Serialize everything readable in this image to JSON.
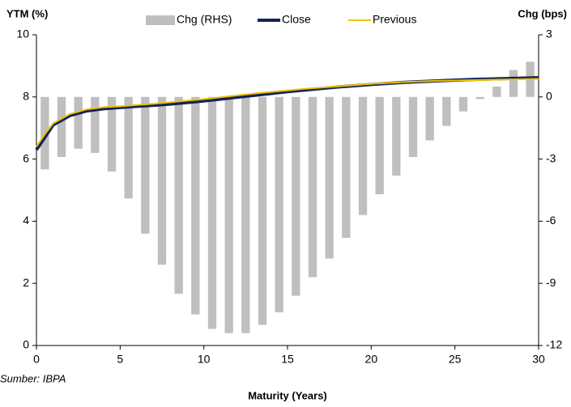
{
  "chart_data": {
    "type": "combo",
    "y_title": "YTM (%)",
    "y2_title": "Chg (bps)",
    "x_title": "Maturity (Years)",
    "source": "Sumber: IBPA",
    "xlim": [
      0,
      30
    ],
    "xticks": [
      0,
      5,
      10,
      15,
      20,
      25,
      30
    ],
    "ylim": [
      0,
      10
    ],
    "yticks": [
      0,
      2,
      4,
      6,
      8,
      10
    ],
    "y2lim": [
      -12,
      3
    ],
    "y2ticks": [
      -12,
      -9,
      -6,
      -3,
      0,
      3
    ],
    "series": [
      {
        "name": "Chg (RHS)",
        "kind": "bar",
        "axis": "y2",
        "color": "#bfbfbf",
        "x": [
          0.5,
          1.5,
          2.5,
          3.5,
          4.5,
          5.5,
          6.5,
          7.5,
          8.5,
          9.5,
          10.5,
          11.5,
          12.5,
          13.5,
          14.5,
          15.5,
          16.5,
          17.5,
          18.5,
          19.5,
          20.5,
          21.5,
          22.5,
          23.5,
          24.5,
          25.5,
          26.5,
          27.5,
          28.5,
          29.5
        ],
        "values": [
          -3.5,
          -2.9,
          -2.5,
          -2.7,
          -3.6,
          -4.9,
          -6.6,
          -8.1,
          -9.5,
          -10.5,
          -11.2,
          -11.4,
          -11.4,
          -11.0,
          -10.4,
          -9.6,
          -8.7,
          -7.8,
          -6.8,
          -5.7,
          -4.7,
          -3.8,
          -2.9,
          -2.1,
          -1.4,
          -0.7,
          -0.1,
          0.5,
          1.3,
          1.7
        ]
      },
      {
        "name": "Close",
        "kind": "line",
        "color": "#13245a",
        "width": 4,
        "x": [
          0,
          0.5,
          1,
          2,
          3,
          4,
          5,
          6,
          7,
          8,
          9,
          10,
          11,
          12,
          13,
          14,
          15,
          16,
          17,
          18,
          19,
          20,
          22,
          24,
          26,
          28,
          30
        ],
        "values": [
          6.3,
          6.7,
          7.1,
          7.4,
          7.55,
          7.62,
          7.66,
          7.7,
          7.73,
          7.77,
          7.82,
          7.87,
          7.93,
          7.99,
          8.05,
          8.11,
          8.17,
          8.22,
          8.27,
          8.32,
          8.36,
          8.4,
          8.47,
          8.52,
          8.56,
          8.59,
          8.62
        ]
      },
      {
        "name": "Previous",
        "kind": "line",
        "color": "#f2c100",
        "width": 2,
        "x": [
          0,
          0.5,
          1,
          2,
          3,
          4,
          5,
          6,
          7,
          8,
          9,
          10,
          11,
          12,
          13,
          14,
          15,
          16,
          17,
          18,
          19,
          20,
          22,
          24,
          26,
          28,
          30
        ],
        "values": [
          6.4,
          6.8,
          7.15,
          7.45,
          7.6,
          7.67,
          7.7,
          7.74,
          7.78,
          7.83,
          7.88,
          7.93,
          7.99,
          8.05,
          8.11,
          8.16,
          8.21,
          8.26,
          8.3,
          8.34,
          8.38,
          8.42,
          8.48,
          8.52,
          8.54,
          8.56,
          8.58
        ]
      }
    ]
  }
}
